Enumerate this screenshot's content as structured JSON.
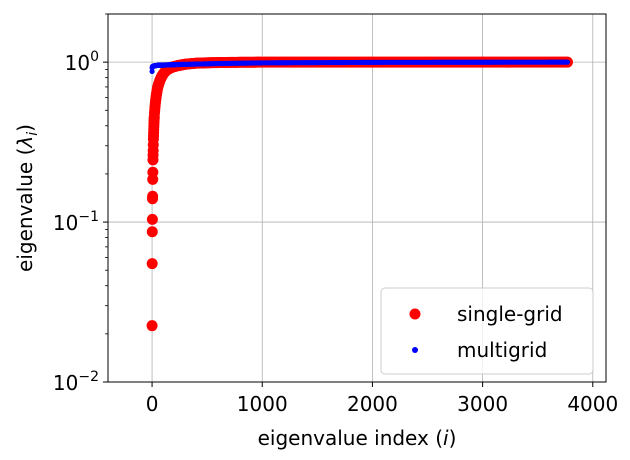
{
  "chart_data": {
    "type": "scatter",
    "title": "",
    "xlabel": "eigenvalue index (i)",
    "ylabel": "eigenvalue (λ_i)",
    "xscale": "linear",
    "yscale": "log",
    "xlim": [
      -400,
      4120
    ],
    "ylim": [
      0.01,
      2.0
    ],
    "grid": true,
    "legend_position": "bottom-right",
    "x_ticks": [
      {
        "value": 0,
        "label": "0"
      },
      {
        "value": 1000,
        "label": "1000"
      },
      {
        "value": 2000,
        "label": "2000"
      },
      {
        "value": 3000,
        "label": "3000"
      },
      {
        "value": 4000,
        "label": "4000"
      }
    ],
    "y_ticks": [
      {
        "value": 0.01,
        "label": "10",
        "exp": "−2"
      },
      {
        "value": 0.1,
        "label": "10",
        "exp": "−1"
      },
      {
        "value": 1.0,
        "label": "10",
        "exp": "0"
      }
    ],
    "x_label_text": {
      "main": "eigenvalue index (",
      "italic": "i",
      "close": ")"
    },
    "y_label_text": {
      "main": "eigenvalue (",
      "italic": "λ",
      "sub": "i",
      "close": ")"
    },
    "series": [
      {
        "name": "single-grid",
        "label": "single-grid",
        "color": "#ff0000",
        "marker": "circle-large",
        "n_points": 3770,
        "key_points": [
          [
            0,
            0.0225
          ],
          [
            1,
            0.055
          ],
          [
            2,
            0.087
          ],
          [
            3,
            0.104
          ],
          [
            4,
            0.14
          ],
          [
            5,
            0.145
          ],
          [
            6,
            0.185
          ],
          [
            7,
            0.205
          ],
          [
            8,
            0.245
          ],
          [
            10,
            0.28
          ],
          [
            12,
            0.33
          ],
          [
            15,
            0.38
          ],
          [
            18,
            0.43
          ],
          [
            22,
            0.48
          ],
          [
            27,
            0.53
          ],
          [
            33,
            0.58
          ],
          [
            40,
            0.63
          ],
          [
            50,
            0.69
          ],
          [
            60,
            0.73
          ],
          [
            75,
            0.78
          ],
          [
            90,
            0.82
          ],
          [
            110,
            0.86
          ],
          [
            140,
            0.9
          ],
          [
            180,
            0.93
          ],
          [
            230,
            0.95
          ],
          [
            300,
            0.97
          ],
          [
            400,
            0.985
          ],
          [
            550,
            0.993
          ],
          [
            800,
            0.998
          ],
          [
            1000,
            1.0
          ],
          [
            3770,
            1.0
          ]
        ]
      },
      {
        "name": "multigrid",
        "label": "multigrid",
        "color": "#0000ff",
        "marker": "circle-small",
        "n_points": 3770,
        "key_points": [
          [
            0,
            0.875
          ],
          [
            1,
            0.92
          ],
          [
            3,
            0.935
          ],
          [
            10,
            0.945
          ],
          [
            50,
            0.955
          ],
          [
            200,
            0.965
          ],
          [
            600,
            0.98
          ],
          [
            1000,
            0.99
          ],
          [
            2000,
            0.997
          ],
          [
            3770,
            1.0
          ]
        ]
      }
    ]
  }
}
